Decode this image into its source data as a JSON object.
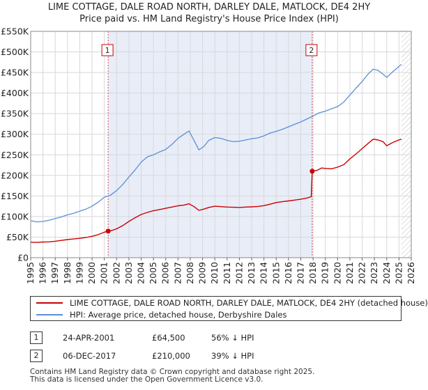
{
  "chart_data": {
    "type": "line",
    "title": "LIME COTTAGE, DALE ROAD NORTH, DARLEY DALE, MATLOCK, DE4 2HY",
    "subtitle": "Price paid vs. HM Land Registry's House Price Index (HPI)",
    "xlim": [
      1995,
      2026
    ],
    "ylim": [
      0,
      550000
    ],
    "grid": true,
    "y_ticks": [
      {
        "value": 0,
        "label": "£0"
      },
      {
        "value": 50000,
        "label": "£50K"
      },
      {
        "value": 100000,
        "label": "£100K"
      },
      {
        "value": 150000,
        "label": "£150K"
      },
      {
        "value": 200000,
        "label": "£200K"
      },
      {
        "value": 250000,
        "label": "£250K"
      },
      {
        "value": 300000,
        "label": "£300K"
      },
      {
        "value": 350000,
        "label": "£350K"
      },
      {
        "value": 400000,
        "label": "£400K"
      },
      {
        "value": 450000,
        "label": "£450K"
      },
      {
        "value": 500000,
        "label": "£500K"
      },
      {
        "value": 550000,
        "label": "£550K"
      }
    ],
    "x_ticks": [
      "1995",
      "1996",
      "1997",
      "1998",
      "1999",
      "2000",
      "2001",
      "2002",
      "2003",
      "2004",
      "2005",
      "2006",
      "2007",
      "2008",
      "2009",
      "2010",
      "2011",
      "2012",
      "2013",
      "2014",
      "2015",
      "2016",
      "2017",
      "2018",
      "2019",
      "2020",
      "2021",
      "2022",
      "2023",
      "2024",
      "2025",
      "2026"
    ],
    "shaded_region": {
      "from": 2001.31,
      "to": 2017.93
    },
    "hatched_from": 2025.2,
    "series": [
      {
        "name": "LIME COTTAGE, DALE ROAD NORTH, DARLEY DALE, MATLOCK, DE4 2HY (detached house)",
        "color": "#cc0000",
        "x": [
          1995,
          1995.5,
          1996,
          1996.5,
          1997,
          1997.5,
          1998,
          1998.5,
          1999,
          1999.5,
          2000,
          2000.5,
          2001,
          2001.31,
          2001.6,
          2002,
          2002.5,
          2003,
          2003.5,
          2004,
          2004.5,
          2005,
          2005.5,
          2006,
          2006.5,
          2007,
          2007.5,
          2007.9,
          2008.3,
          2008.7,
          2009.1,
          2009.5,
          2010,
          2010.5,
          2011,
          2011.5,
          2012,
          2012.5,
          2013,
          2013.5,
          2014,
          2014.5,
          2015,
          2015.5,
          2016,
          2016.5,
          2017,
          2017.5,
          2017.85,
          2017.93,
          2018.3,
          2018.7,
          2019,
          2019.5,
          2020,
          2020.5,
          2021,
          2021.5,
          2022,
          2022.5,
          2022.9,
          2023.3,
          2023.7,
          2024,
          2024.5,
          2024.9,
          2025.2
        ],
        "y": [
          37500,
          37000,
          38000,
          38500,
          40000,
          42000,
          44000,
          45500,
          47000,
          49000,
          52000,
          56000,
          62000,
          64500,
          66000,
          70000,
          78000,
          88000,
          97000,
          105000,
          110000,
          114000,
          117000,
          120000,
          123000,
          126000,
          128000,
          131000,
          124000,
          115000,
          118000,
          122000,
          125000,
          124000,
          123000,
          122500,
          122000,
          123000,
          123500,
          124500,
          126500,
          130000,
          134000,
          136000,
          138000,
          140000,
          142000,
          145000,
          148000,
          210000,
          212000,
          218000,
          217000,
          216000,
          220000,
          226000,
          240000,
          252000,
          265000,
          278000,
          288000,
          286000,
          282000,
          272000,
          280000,
          285000,
          288000
        ]
      },
      {
        "name": "HPI: Average price, detached house, Derbyshire Dales",
        "color": "#5b8fd4",
        "x": [
          1995,
          1995.5,
          1996,
          1996.5,
          1997,
          1997.5,
          1998,
          1998.5,
          1999,
          1999.5,
          2000,
          2000.5,
          2001,
          2001.5,
          2002,
          2002.5,
          2003,
          2003.5,
          2004,
          2004.5,
          2005,
          2005.5,
          2006,
          2006.5,
          2007,
          2007.5,
          2007.9,
          2008.3,
          2008.7,
          2009.1,
          2009.5,
          2010,
          2010.5,
          2011,
          2011.5,
          2012,
          2012.5,
          2013,
          2013.5,
          2014,
          2014.5,
          2015,
          2015.5,
          2016,
          2016.5,
          2017,
          2017.5,
          2018,
          2018.5,
          2019,
          2019.5,
          2020,
          2020.5,
          2021,
          2021.5,
          2022,
          2022.5,
          2022.9,
          2023.3,
          2023.7,
          2024,
          2024.5,
          2024.9,
          2025.2
        ],
        "y": [
          90000,
          87000,
          88000,
          91000,
          95000,
          99000,
          104000,
          108000,
          113000,
          118000,
          125000,
          135000,
          147000,
          152000,
          163000,
          178000,
          196000,
          213000,
          232000,
          245000,
          250000,
          257000,
          263000,
          275000,
          290000,
          300000,
          308000,
          285000,
          262000,
          270000,
          285000,
          292000,
          290000,
          285000,
          282000,
          283000,
          286000,
          289000,
          291000,
          296000,
          303000,
          307000,
          312000,
          318000,
          324000,
          330000,
          337000,
          344000,
          352000,
          356000,
          362000,
          367000,
          378000,
          395000,
          412000,
          428000,
          447000,
          458000,
          455000,
          446000,
          438000,
          452000,
          462000,
          470000
        ]
      }
    ],
    "sale_markers": [
      {
        "label": "1",
        "x": 2001.31,
        "y": 64500
      },
      {
        "label": "2",
        "x": 2017.93,
        "y": 210000
      }
    ]
  },
  "legend": {
    "red_label": "LIME COTTAGE, DALE ROAD NORTH, DARLEY DALE, MATLOCK, DE4 2HY (detached house)",
    "blue_label": "HPI: Average price, detached house, Derbyshire Dales"
  },
  "sales": [
    {
      "num": "1",
      "date": "24-APR-2001",
      "price": "£64,500",
      "hpi": "56% ↓ HPI"
    },
    {
      "num": "2",
      "date": "06-DEC-2017",
      "price": "£210,000",
      "hpi": "39% ↓ HPI"
    }
  ],
  "footer": {
    "line1": "Contains HM Land Registry data © Crown copyright and database right 2025.",
    "line2": "This data is licensed under the Open Government Licence v3.0."
  },
  "colors": {
    "red": "#cc0000",
    "blue": "#5b8fd4",
    "shade": "#e8edf8",
    "grid": "#d8d8d8"
  }
}
